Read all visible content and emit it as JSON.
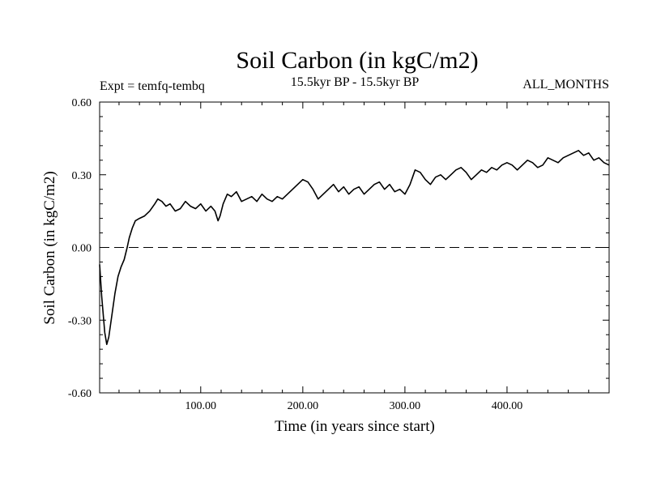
{
  "chart_data": {
    "type": "line",
    "title": "Soil Carbon (in kgC/m2)",
    "expt_label": "Expt = temfq-tembq",
    "period_label": "15.5kyr BP - 15.5kyr BP",
    "months_label": "ALL_MONTHS",
    "xlabel": "Time (in years since start)",
    "ylabel": "Soil Carbon (in kgC/m2)",
    "xlim": [
      1,
      500
    ],
    "ylim": [
      -0.6,
      0.6
    ],
    "x_ticks": [
      100,
      200,
      300,
      400
    ],
    "x_tick_labels": [
      "100.00",
      "200.00",
      "300.00",
      "400.00"
    ],
    "y_ticks": [
      -0.6,
      -0.3,
      0.0,
      0.3,
      0.6
    ],
    "y_tick_labels": [
      "-0.60",
      "-0.30",
      "0.00",
      "0.30",
      "0.60"
    ],
    "reference_line": {
      "y": 0.0,
      "style": "dashed"
    },
    "series": [
      {
        "name": "Soil Carbon",
        "x": [
          1,
          3,
          6,
          8,
          10,
          13,
          16,
          19,
          22,
          25,
          28,
          30,
          33,
          36,
          40,
          45,
          50,
          55,
          58,
          62,
          66,
          70,
          75,
          80,
          85,
          90,
          95,
          100,
          105,
          110,
          114,
          117,
          119,
          122,
          126,
          130,
          135,
          140,
          145,
          150,
          155,
          160,
          165,
          170,
          175,
          180,
          185,
          190,
          195,
          200,
          205,
          210,
          215,
          220,
          225,
          230,
          235,
          240,
          245,
          250,
          255,
          260,
          265,
          270,
          275,
          280,
          285,
          290,
          295,
          300,
          305,
          310,
          315,
          320,
          325,
          330,
          335,
          340,
          345,
          350,
          355,
          360,
          365,
          370,
          375,
          380,
          385,
          390,
          395,
          400,
          405,
          410,
          415,
          420,
          425,
          430,
          435,
          440,
          445,
          450,
          455,
          460,
          465,
          470,
          475,
          480,
          485,
          490,
          495,
          500
        ],
        "values": [
          -0.07,
          -0.2,
          -0.35,
          -0.4,
          -0.37,
          -0.28,
          -0.19,
          -0.12,
          -0.08,
          -0.05,
          0.0,
          0.04,
          0.08,
          0.11,
          0.12,
          0.13,
          0.15,
          0.18,
          0.2,
          0.19,
          0.17,
          0.18,
          0.15,
          0.16,
          0.19,
          0.17,
          0.16,
          0.18,
          0.15,
          0.17,
          0.15,
          0.11,
          0.13,
          0.18,
          0.22,
          0.21,
          0.23,
          0.19,
          0.2,
          0.21,
          0.19,
          0.22,
          0.2,
          0.19,
          0.21,
          0.2,
          0.22,
          0.24,
          0.26,
          0.28,
          0.27,
          0.24,
          0.2,
          0.22,
          0.24,
          0.26,
          0.23,
          0.25,
          0.22,
          0.24,
          0.25,
          0.22,
          0.24,
          0.26,
          0.27,
          0.24,
          0.26,
          0.23,
          0.24,
          0.22,
          0.26,
          0.32,
          0.31,
          0.28,
          0.26,
          0.29,
          0.3,
          0.28,
          0.3,
          0.32,
          0.33,
          0.31,
          0.28,
          0.3,
          0.32,
          0.31,
          0.33,
          0.32,
          0.34,
          0.35,
          0.34,
          0.32,
          0.34,
          0.36,
          0.35,
          0.33,
          0.34,
          0.37,
          0.36,
          0.35,
          0.37,
          0.38,
          0.39,
          0.4,
          0.38,
          0.39,
          0.36,
          0.37,
          0.35,
          0.34
        ]
      }
    ]
  }
}
